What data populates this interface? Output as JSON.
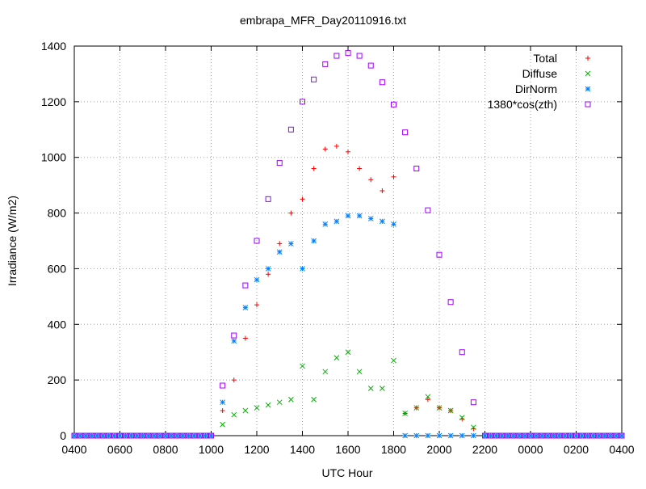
{
  "chart_data": {
    "type": "scatter",
    "title": "embrapa_MFR_Day20110916.txt",
    "xlabel": "UTC Hour",
    "ylabel": "Irradiance (W/m2)",
    "xlim": [
      0,
      24
    ],
    "ylim": [
      0,
      1400
    ],
    "grid": true,
    "legend_position": "top-right",
    "x_tick_labels": [
      "0400",
      "0600",
      "0800",
      "1000",
      "1200",
      "1400",
      "1600",
      "1800",
      "2000",
      "2200",
      "0000",
      "0200",
      "0400"
    ],
    "y_ticks": [
      0,
      200,
      400,
      600,
      800,
      1000,
      1200,
      1400
    ],
    "series": [
      {
        "name": "Total",
        "marker": "plus",
        "color": "#ff0000",
        "x": [
          "1000",
          "1030",
          "1100",
          "1130",
          "1200",
          "1230",
          "1300",
          "1330",
          "1400",
          "1430",
          "1500",
          "1530",
          "1600",
          "1630",
          "1700",
          "1730",
          "1800",
          "1830",
          "1900",
          "1930",
          "2000",
          "2030",
          "2100",
          "2130",
          "2200"
        ],
        "y": [
          0,
          90,
          200,
          350,
          470,
          580,
          690,
          800,
          850,
          960,
          1030,
          1040,
          1020,
          960,
          920,
          880,
          930,
          80,
          100,
          130,
          100,
          90,
          60,
          25,
          0
        ]
      },
      {
        "name": "Diffuse",
        "marker": "cross",
        "color": "#00b000",
        "x": [
          "1000",
          "1030",
          "1100",
          "1130",
          "1200",
          "1230",
          "1300",
          "1330",
          "1400",
          "1430",
          "1500",
          "1530",
          "1600",
          "1630",
          "1700",
          "1730",
          "1800",
          "1830",
          "1900",
          "1930",
          "2000",
          "2030",
          "2100",
          "2130",
          "2200"
        ],
        "y": [
          0,
          40,
          75,
          90,
          100,
          110,
          120,
          130,
          250,
          130,
          230,
          280,
          300,
          230,
          170,
          170,
          270,
          80,
          100,
          140,
          100,
          90,
          65,
          30,
          0
        ]
      },
      {
        "name": "DirNorm",
        "marker": "star",
        "color": "#0080ff",
        "x": [
          "1000",
          "1030",
          "1100",
          "1130",
          "1200",
          "1230",
          "1300",
          "1330",
          "1400",
          "1430",
          "1500",
          "1530",
          "1600",
          "1630",
          "1700",
          "1730",
          "1800",
          "1830",
          "1900",
          "1930",
          "2000",
          "2030",
          "2100",
          "2130",
          "2200"
        ],
        "y": [
          0,
          120,
          340,
          460,
          560,
          600,
          660,
          690,
          600,
          700,
          760,
          770,
          790,
          790,
          780,
          770,
          760,
          0,
          0,
          0,
          0,
          0,
          0,
          0,
          0
        ]
      },
      {
        "name": "1380*cos(zth)",
        "marker": "square",
        "color": "#a000ff",
        "x": [
          "1000",
          "1030",
          "1100",
          "1130",
          "1200",
          "1230",
          "1300",
          "1330",
          "1400",
          "1430",
          "1500",
          "1530",
          "1600",
          "1630",
          "1700",
          "1730",
          "1800",
          "1830",
          "1900",
          "1930",
          "2000",
          "2030",
          "2100",
          "2130",
          "2200"
        ],
        "y": [
          0,
          180,
          360,
          540,
          700,
          850,
          980,
          1100,
          1200,
          1280,
          1335,
          1365,
          1375,
          1365,
          1330,
          1270,
          1190,
          1090,
          960,
          810,
          650,
          480,
          300,
          120,
          0
        ]
      }
    ]
  }
}
